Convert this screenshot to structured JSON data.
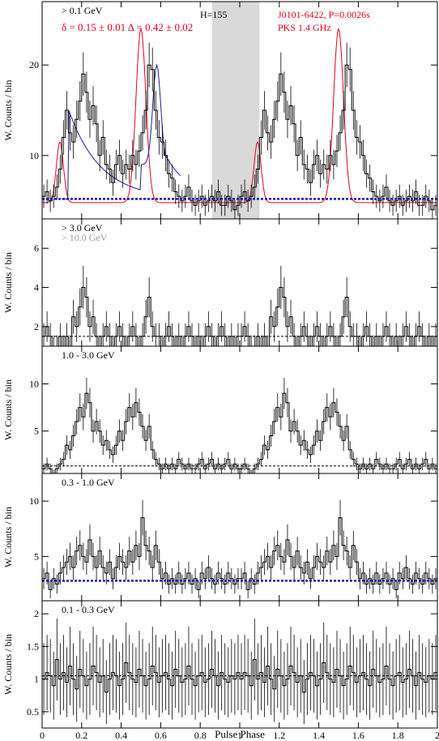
{
  "figure": {
    "xlabel": "Pulse Phase",
    "ylabel": "W. Counts / bin",
    "x_ticks": [
      "0",
      "0.2",
      "0.4",
      "0.6",
      "0.8",
      "1",
      "1.2",
      "1.4",
      "1.6",
      "1.8",
      "2"
    ],
    "colors": {
      "radio": "#e8001c",
      "model": "#1a1aa8",
      "offpulse": "#d9d9d9",
      "highE": "#9a9a9a",
      "hist": "#000000"
    }
  },
  "chart_data": [
    {
      "type": "line",
      "panel": "top",
      "labels": {
        "energy": "> 0.1 GeV",
        "h_test": "H=155",
        "params": "δ = 0.15 ± 0.01  Δ = 0.42 ± 0.02",
        "pulsar": "J0101-6422, P=0.0026s",
        "radio": "PKS 1.4 GHz"
      },
      "ylim": [
        3,
        27
      ],
      "yticks": [
        "10",
        "20"
      ],
      "ytick_values": [
        10,
        20
      ],
      "background": 5.2,
      "offpulse_phase": [
        0.86,
        1.1
      ],
      "bins_per_cycle": 60,
      "counts": [
        5.5,
        6.0,
        5.0,
        5.5,
        6.5,
        8.5,
        12.0,
        15.0,
        12.5,
        11.5,
        14.0,
        16.0,
        19.0,
        17.0,
        14.0,
        15.5,
        13.5,
        10.0,
        12.0,
        9.0,
        8.5,
        7.0,
        9.0,
        10.0,
        8.0,
        9.0,
        8.5,
        10.0,
        9.0,
        10.5,
        12.5,
        15.0,
        20.0,
        19.5,
        15.0,
        12.0,
        11.5,
        10.0,
        8.0,
        7.5,
        6.0,
        5.5,
        5.0,
        5.5,
        6.5,
        5.0,
        4.5,
        5.0,
        5.5,
        4.5,
        5.0,
        5.5,
        5.0,
        6.0,
        4.5,
        4.5,
        5.5,
        5.0,
        4.0,
        4.5
      ],
      "radio_peaks": [
        {
          "phase": 0.09,
          "height": 11.5
        },
        {
          "phase": 0.5,
          "height": 24.0
        },
        {
          "phase": 1.09,
          "height": 11.5
        },
        {
          "phase": 1.5,
          "height": 24.0
        }
      ],
      "radio_base": 4.8
    },
    {
      "type": "line",
      "panel": "3gev",
      "labels": {
        "energy": "> 3.0 GeV",
        "energy2": "> 10.0 GeV"
      },
      "ylim": [
        1,
        7.5
      ],
      "yticks": [
        "2",
        "4",
        "6"
      ],
      "ytick_values": [
        2,
        4,
        6
      ],
      "background": 1.5,
      "bins_per_cycle": 60,
      "counts": [
        1.5,
        2.0,
        1.5,
        1.0,
        1.0,
        1.5,
        1.0,
        1.5,
        1.0,
        2.5,
        2.0,
        3.0,
        4.0,
        3.5,
        2.0,
        2.5,
        1.5,
        1.0,
        1.5,
        2.0,
        1.5,
        1.0,
        1.5,
        2.0,
        1.5,
        1.0,
        1.5,
        2.0,
        1.5,
        1.0,
        1.5,
        2.5,
        3.5,
        2.0,
        1.5,
        1.5,
        1.0,
        1.5,
        2.0,
        1.5,
        1.0,
        1.5,
        1.0,
        1.5,
        2.0,
        1.5,
        1.0,
        1.5,
        1.0,
        1.5,
        2.0,
        1.5,
        1.0,
        1.5,
        2.0,
        1.5,
        1.0,
        1.5,
        1.0,
        1.5
      ]
    },
    {
      "type": "line",
      "panel": "1-3gev",
      "labels": {
        "energy": "1.0 - 3.0 GeV"
      },
      "ylim": [
        0.5,
        14
      ],
      "yticks": [
        "5",
        "10"
      ],
      "ytick_values": [
        5,
        10
      ],
      "background": 1.3,
      "bins_per_cycle": 60,
      "counts": [
        1.0,
        1.5,
        1.0,
        0.5,
        1.0,
        1.5,
        2.0,
        3.5,
        3.0,
        4.5,
        6.0,
        7.5,
        6.5,
        9.0,
        8.0,
        5.0,
        6.0,
        5.0,
        3.5,
        4.0,
        3.0,
        2.5,
        3.5,
        5.0,
        4.0,
        6.0,
        7.5,
        6.5,
        8.0,
        7.0,
        5.5,
        4.0,
        5.5,
        3.0,
        2.0,
        1.5,
        1.0,
        1.5,
        1.0,
        1.5,
        1.0,
        2.0,
        1.5,
        1.0,
        1.5,
        1.0,
        1.0,
        1.5,
        2.0,
        1.0,
        1.5,
        2.0,
        1.0,
        1.5,
        1.0,
        1.5,
        2.0,
        1.0,
        1.5,
        1.0
      ]
    },
    {
      "type": "line",
      "panel": "0.3-1gev",
      "labels": {
        "energy": "0.3 - 1.0 GeV"
      },
      "ylim": [
        1,
        12.5
      ],
      "yticks": [
        "5",
        "10"
      ],
      "ytick_values": [
        5,
        10
      ],
      "background": 2.8,
      "bins_per_cycle": 60,
      "counts": [
        3.0,
        3.5,
        2.0,
        3.0,
        2.5,
        3.5,
        4.0,
        4.5,
        5.0,
        4.0,
        5.5,
        6.0,
        5.0,
        4.5,
        6.5,
        5.0,
        4.0,
        5.5,
        4.0,
        3.5,
        4.5,
        3.0,
        4.0,
        5.0,
        4.5,
        4.0,
        5.5,
        4.5,
        6.0,
        5.0,
        8.5,
        6.0,
        5.5,
        4.0,
        6.0,
        4.5,
        3.0,
        3.5,
        2.5,
        3.0,
        2.5,
        3.5,
        2.5,
        3.0,
        3.5,
        2.5,
        3.0,
        2.0,
        3.5,
        3.0,
        4.0,
        3.0,
        2.5,
        3.5,
        3.0,
        2.5,
        3.5,
        3.0,
        2.5,
        3.0
      ]
    },
    {
      "type": "line",
      "panel": "0.1-0.3gev",
      "labels": {
        "energy": "0.1 - 0.3 GeV"
      },
      "ylim": [
        0.25,
        2.2
      ],
      "yticks": [
        "0.5",
        "1",
        "1.5",
        "2"
      ],
      "ytick_values": [
        0.5,
        1,
        1.5,
        2
      ],
      "background": 1.05,
      "bins_per_cycle": 60,
      "counts": [
        1.0,
        1.1,
        1.05,
        0.9,
        1.3,
        1.0,
        1.1,
        0.95,
        1.2,
        1.0,
        0.85,
        1.15,
        1.05,
        0.9,
        1.0,
        1.2,
        1.1,
        0.95,
        1.05,
        0.8,
        1.0,
        1.1,
        1.05,
        0.9,
        1.0,
        1.25,
        1.1,
        1.0,
        0.95,
        1.15,
        1.05,
        0.9,
        1.0,
        1.2,
        1.1,
        0.95,
        1.05,
        1.1,
        1.0,
        0.9,
        1.15,
        1.05,
        0.95,
        1.0,
        1.2,
        1.0,
        0.9,
        1.05,
        1.1,
        0.95,
        1.0,
        1.15,
        1.05,
        0.9,
        1.1,
        1.0,
        0.95,
        1.05,
        1.0,
        1.1
      ]
    }
  ]
}
